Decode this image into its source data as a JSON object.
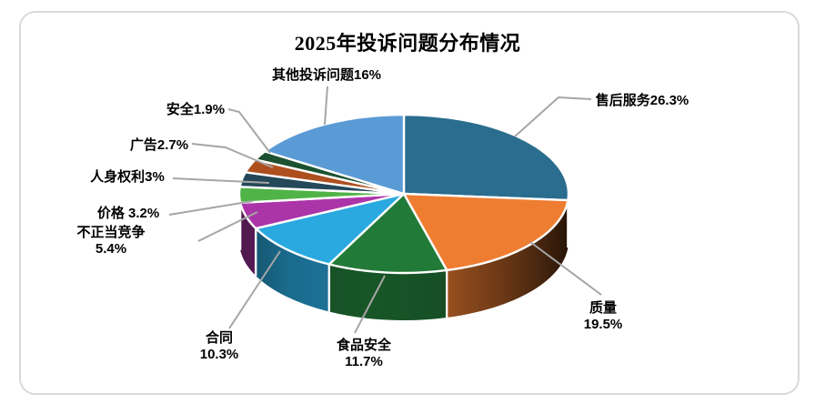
{
  "card": {
    "border_color": "#d9d9d9",
    "background": "#ffffff"
  },
  "chart_data": {
    "type": "pie",
    "effect": "3d",
    "title": "2025年投诉问题分布情况",
    "legend_position": "none",
    "labels_style": "outside-with-leader-lines",
    "leader_line_color": "#a6a6a6",
    "label_color": "#000000",
    "total": 100,
    "slices": [
      {
        "name": "售后服务",
        "value": 26.3,
        "label_lines": [
          "售后服务26.3%"
        ],
        "color": "#2a6d8e"
      },
      {
        "name": "质量",
        "value": 19.5,
        "label_lines": [
          "质量",
          "19.5%"
        ],
        "color": "#ef7d31"
      },
      {
        "name": "食品安全",
        "value": 11.7,
        "label_lines": [
          "食品安全",
          "11.7%"
        ],
        "color": "#217a38"
      },
      {
        "name": "合同",
        "value": 10.3,
        "label_lines": [
          "合同",
          "10.3%"
        ],
        "color": "#29a9e0"
      },
      {
        "name": "不正当竞争",
        "value": 5.4,
        "label_lines": [
          "不正当竞争",
          "5.4%"
        ],
        "color": "#ab35a8"
      },
      {
        "name": "价格",
        "value": 3.2,
        "label_lines": [
          "价格 3.2%"
        ],
        "color": "#50b347"
      },
      {
        "name": "人身权利",
        "value": 3,
        "label_lines": [
          "人身权利3%"
        ],
        "color": "#24485a"
      },
      {
        "name": "广告",
        "value": 2.7,
        "label_lines": [
          "广告2.7%"
        ],
        "color": "#ae4f1f"
      },
      {
        "name": "安全",
        "value": 1.9,
        "label_lines": [
          "安全1.9%"
        ],
        "color": "#1b5130"
      },
      {
        "name": "其他投诉问题",
        "value": 16,
        "label_lines": [
          "其他投诉问题16%"
        ],
        "color": "#5b9bd5"
      }
    ]
  }
}
